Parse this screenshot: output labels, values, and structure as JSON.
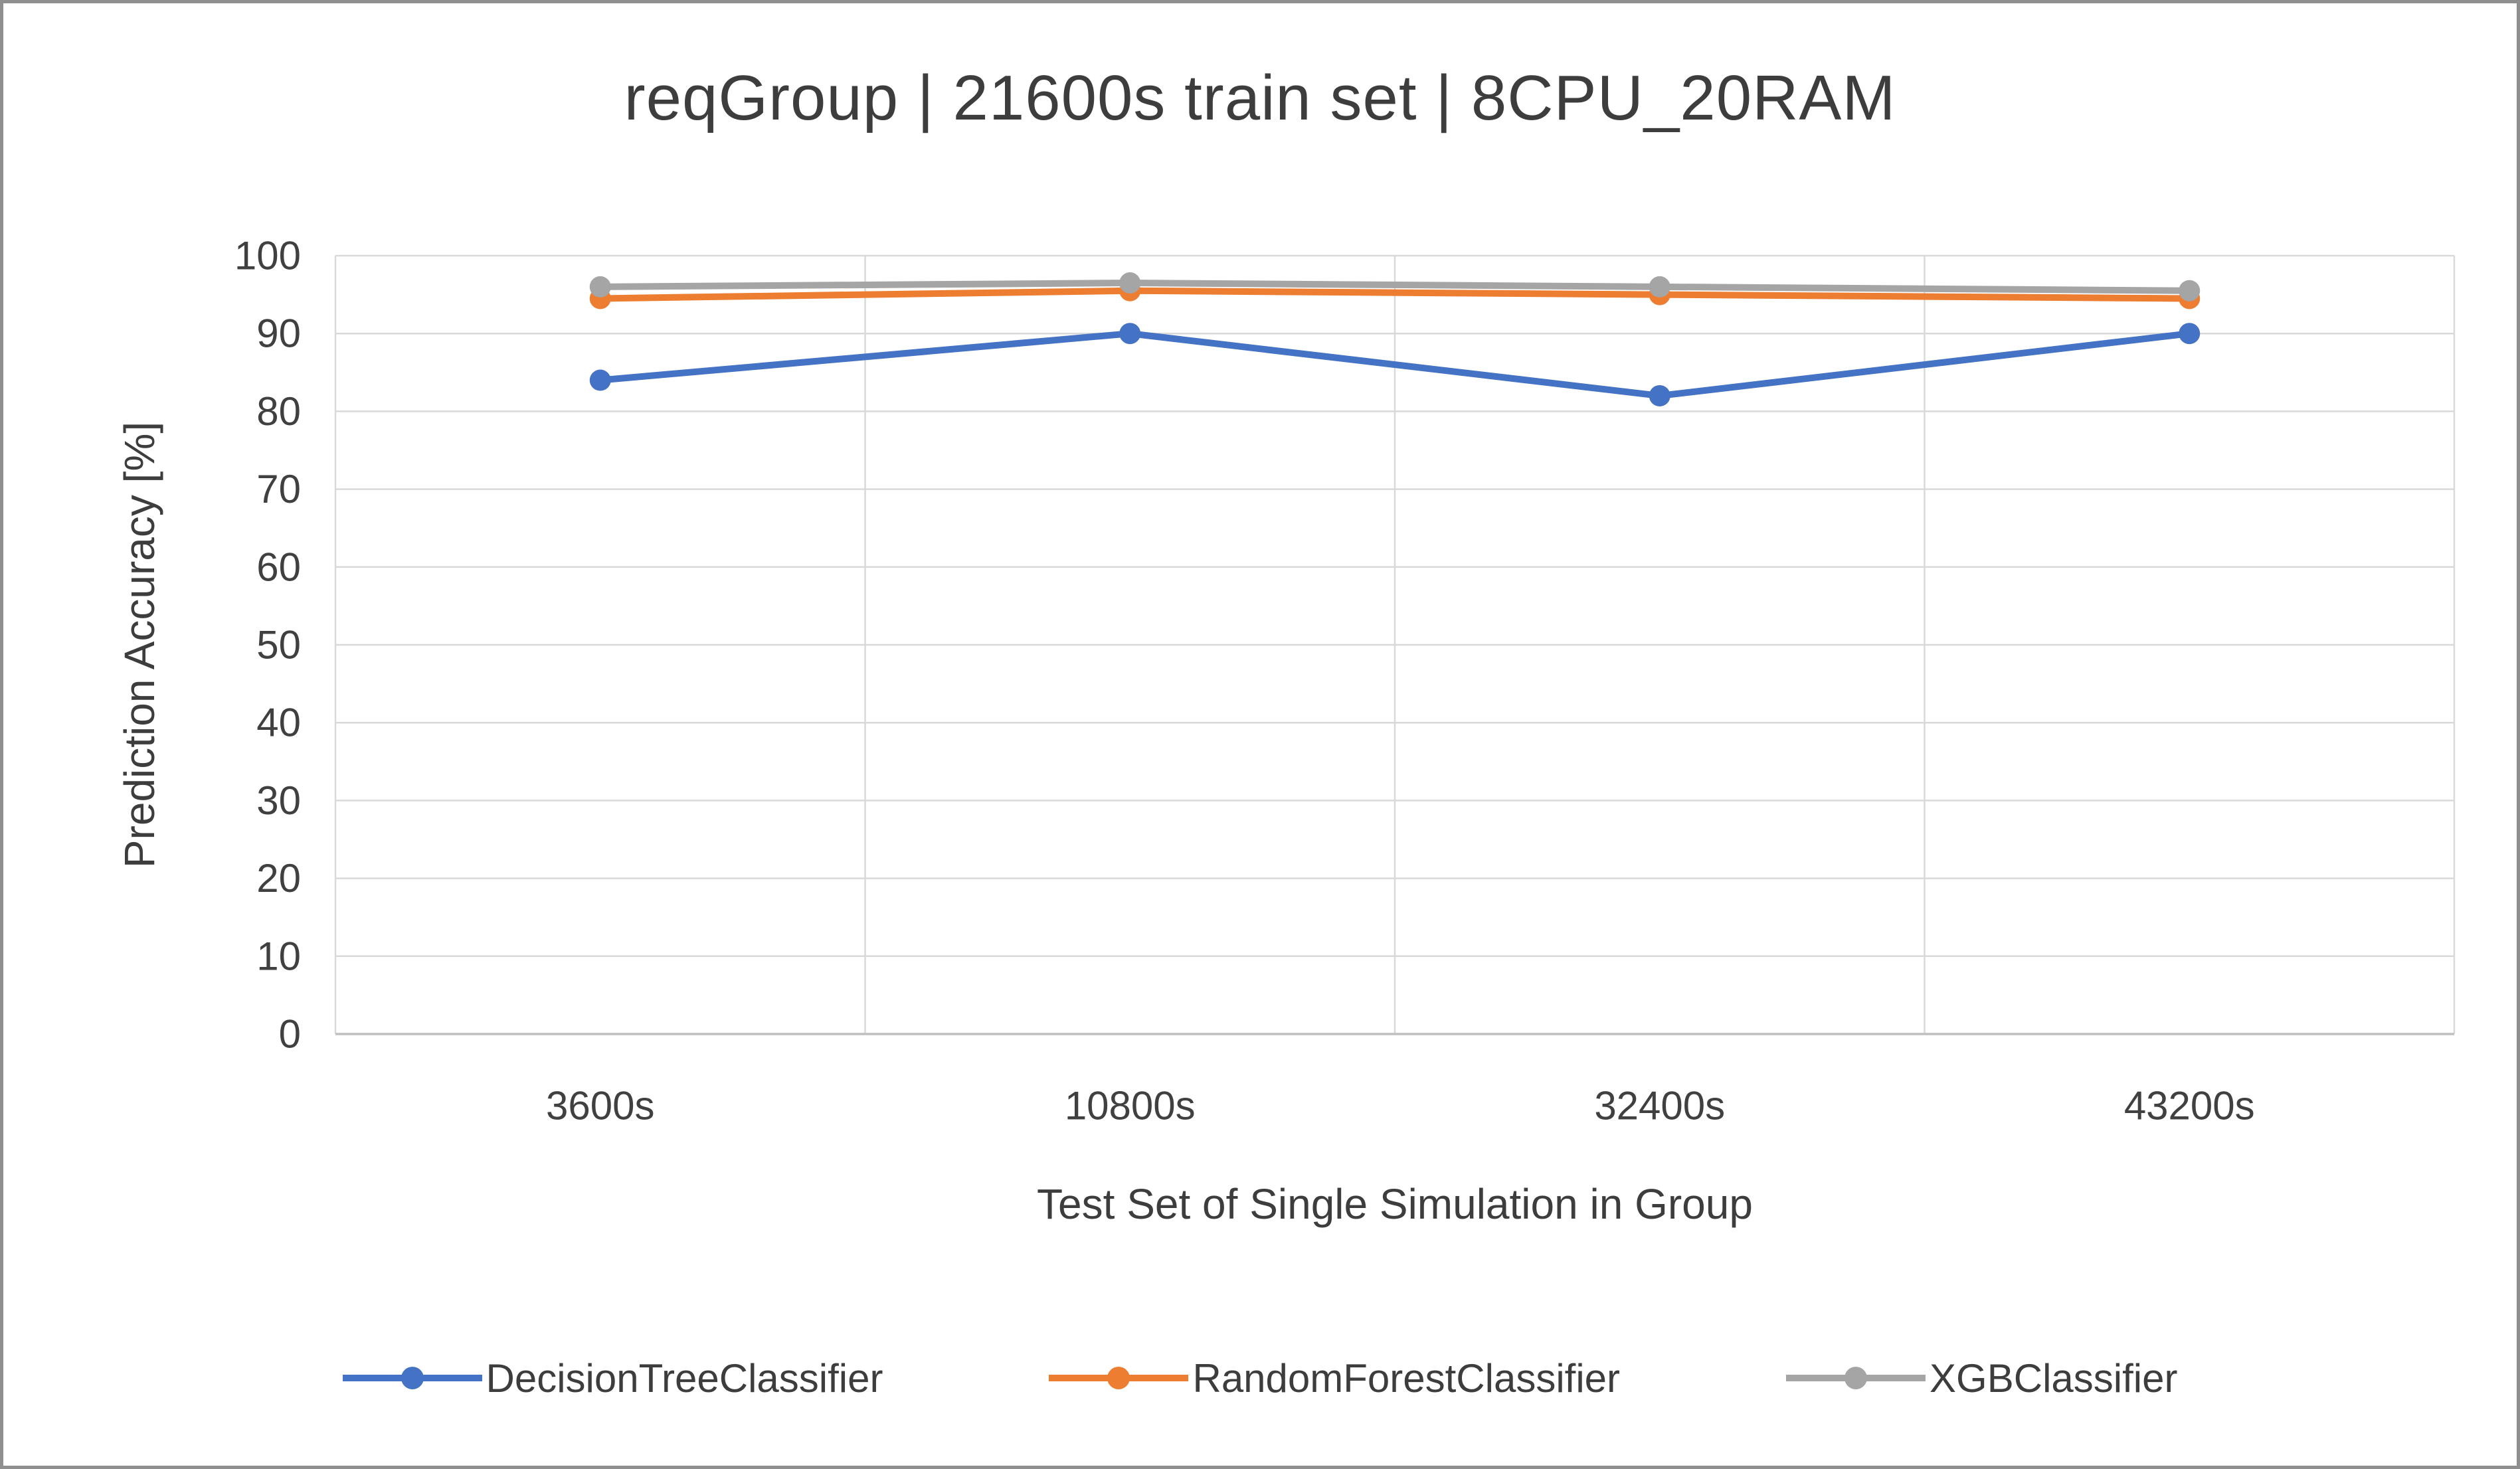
{
  "chart_data": {
    "type": "line",
    "title": "reqGroup | 21600s train set | 8CPU_20RAM",
    "xlabel": "Test Set of Single Simulation in Group",
    "ylabel": "Prediction Accuracy [%]",
    "categories": [
      "3600s",
      "10800s",
      "32400s",
      "43200s"
    ],
    "series": [
      {
        "name": "DecisionTreeClassifier",
        "color": "#4472C4",
        "values": [
          84,
          90,
          82,
          90
        ]
      },
      {
        "name": "RandomForestClassifier",
        "color": "#ED7D31",
        "values": [
          94.5,
          95.5,
          95,
          94.5
        ]
      },
      {
        "name": "XGBClassifier",
        "color": "#A5A5A5",
        "values": [
          96,
          96.5,
          96,
          95.5
        ]
      }
    ],
    "ylim": [
      0,
      100
    ],
    "ytick_step": 10,
    "grid": true,
    "legend_position": "bottom"
  },
  "colors": {
    "grid": "#D9D9D9",
    "axis": "#BFBFBF",
    "text": "#404040",
    "border": "#8F8F8F"
  }
}
